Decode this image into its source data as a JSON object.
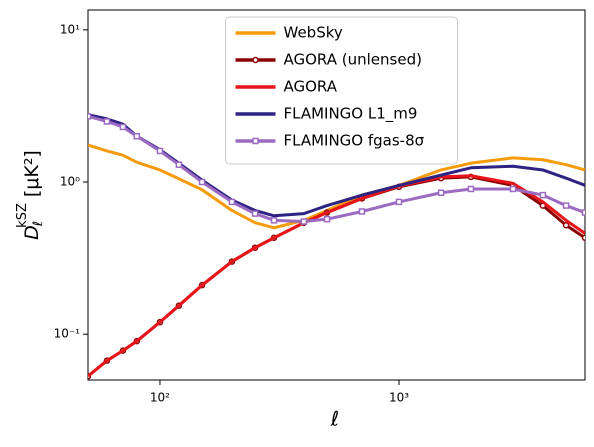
{
  "chart_data": {
    "type": "line",
    "xlabel": "ℓ",
    "ylabel": {
      "base": "D",
      "sub": "ℓ",
      "sup": "kSZ",
      "unit": "[μK²]"
    },
    "x": [
      50,
      60,
      70,
      80,
      100,
      120,
      150,
      200,
      250,
      300,
      400,
      500,
      700,
      1000,
      1500,
      2000,
      3000,
      4000,
      5000,
      6000
    ],
    "series": [
      {
        "name": "WebSky",
        "color": "#f59b0d",
        "marker": null,
        "values": [
          1.75,
          1.6,
          1.5,
          1.35,
          1.2,
          1.05,
          0.89,
          0.65,
          0.54,
          0.5,
          0.56,
          0.65,
          0.82,
          0.95,
          1.2,
          1.33,
          1.44,
          1.4,
          1.3,
          1.2
        ]
      },
      {
        "name": "AGORA (unlensed)",
        "color": "#8b0000",
        "marker": "circle",
        "values": [
          0.053,
          0.067,
          0.078,
          0.09,
          0.12,
          0.154,
          0.21,
          0.3,
          0.37,
          0.43,
          0.54,
          0.63,
          0.78,
          0.93,
          1.06,
          1.08,
          0.95,
          0.7,
          0.52,
          0.43
        ]
      },
      {
        "name": "AGORA",
        "color": "#e8141a",
        "marker": null,
        "values": [
          0.053,
          0.067,
          0.078,
          0.09,
          0.12,
          0.154,
          0.21,
          0.3,
          0.37,
          0.43,
          0.54,
          0.63,
          0.78,
          0.94,
          1.08,
          1.1,
          0.98,
          0.74,
          0.56,
          0.46
        ]
      },
      {
        "name": "FLAMINGO L1_m9",
        "color": "#2e2383",
        "marker": null,
        "values": [
          2.77,
          2.6,
          2.4,
          2.0,
          1.63,
          1.33,
          1.03,
          0.76,
          0.65,
          0.6,
          0.62,
          0.7,
          0.82,
          0.95,
          1.11,
          1.24,
          1.27,
          1.2,
          1.06,
          0.95
        ]
      },
      {
        "name": "FLAMINGO fgas-8σ",
        "color": "#9b6bc2",
        "marker": "square",
        "values": [
          2.7,
          2.5,
          2.3,
          2.0,
          1.6,
          1.3,
          1.0,
          0.74,
          0.62,
          0.56,
          0.55,
          0.57,
          0.64,
          0.74,
          0.85,
          0.9,
          0.9,
          0.82,
          0.7,
          0.63
        ]
      }
    ],
    "xscale": "log",
    "yscale": "log",
    "xlim": [
      50,
      6000
    ],
    "ylim": [
      0.05,
      13.5
    ],
    "xticks": [
      {
        "value": 100,
        "label": "10²"
      },
      {
        "value": 1000,
        "label": "10³"
      }
    ],
    "yticks": [
      {
        "value": 0.1,
        "label": "10⁻¹"
      },
      {
        "value": 1,
        "label": "10⁰"
      },
      {
        "value": 10,
        "label": "10¹"
      }
    ],
    "legend": "upper center"
  }
}
